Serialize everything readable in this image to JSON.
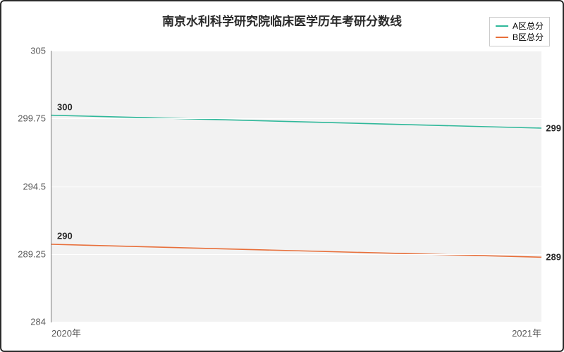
{
  "chart": {
    "title": "南京水利科学研究院临床医学历年考研分数线",
    "title_fontsize": 17,
    "background_color": "#ffffff",
    "plot_background_color": "#f2f2f2",
    "grid_color": "#ffffff",
    "axis_color": "#7a7a7a",
    "text_color": "#2a2a2a",
    "tick_color": "#5a5a5a",
    "tick_fontsize": 13,
    "dlabel_fontsize": 13,
    "x": {
      "categories": [
        "2020年",
        "2021年"
      ]
    },
    "y": {
      "min": 284,
      "max": 305,
      "ticks": [
        284,
        289.25,
        294.5,
        299.75,
        305
      ]
    },
    "series": [
      {
        "name": "A区总分",
        "color": "#2fb89a",
        "line_width": 1.6,
        "values": [
          300,
          299
        ]
      },
      {
        "name": "B区总分",
        "color": "#e86f3a",
        "line_width": 1.6,
        "values": [
          290,
          289
        ]
      }
    ],
    "legend": {
      "fontsize": 12,
      "border_color": "#c9c9c9"
    }
  }
}
